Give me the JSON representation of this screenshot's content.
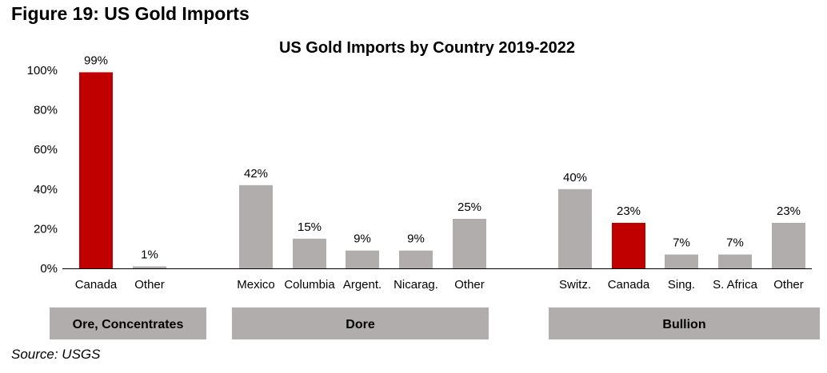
{
  "figure_title": "Figure 19: US Gold Imports",
  "source": "Source: USGS",
  "colors": {
    "highlight": "#c00000",
    "bar": "#b1adad",
    "group_box": "#b1adad"
  },
  "chart_data": {
    "type": "bar",
    "title": "US Gold Imports by Country 2019-2022",
    "xlabel": "",
    "ylabel": "",
    "ylim": [
      0,
      100
    ],
    "yticks": [
      "0%",
      "20%",
      "40%",
      "60%",
      "80%",
      "100%"
    ],
    "ytick_values": [
      0,
      20,
      40,
      60,
      80,
      100
    ],
    "grid": false,
    "groups": [
      {
        "name": "Ore, Concentrates",
        "categories": [
          "Canada",
          "Other"
        ],
        "values": [
          99,
          1
        ],
        "labels": [
          "99%",
          "1%"
        ],
        "highlight": [
          true,
          false
        ]
      },
      {
        "name": "Dore",
        "categories": [
          "Mexico",
          "Columbia",
          "Argent.",
          "Nicarag.",
          "Other"
        ],
        "values": [
          42,
          15,
          9,
          9,
          25
        ],
        "labels": [
          "42%",
          "15%",
          "9%",
          "9%",
          "25%"
        ],
        "highlight": [
          false,
          false,
          false,
          false,
          false
        ]
      },
      {
        "name": "Bullion",
        "categories": [
          "Switz.",
          "Canada",
          "Sing.",
          "S. Africa",
          "Other"
        ],
        "values": [
          40,
          23,
          7,
          7,
          23
        ],
        "labels": [
          "40%",
          "23%",
          "7%",
          "7%",
          "23%"
        ],
        "highlight": [
          false,
          true,
          false,
          false,
          false
        ]
      }
    ]
  }
}
